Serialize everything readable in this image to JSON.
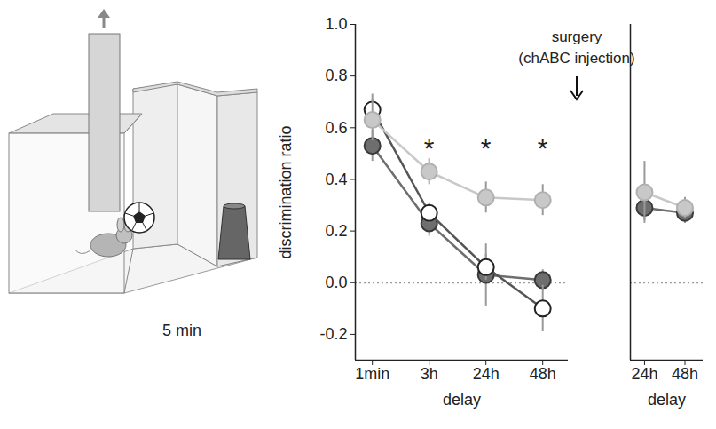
{
  "illustration": {
    "caption": "5 min"
  },
  "annotation": [
    "surgery",
    "(chABC injection)"
  ],
  "chart_data": [
    {
      "type": "line",
      "x_label": "delay",
      "y_label": "discrimination ratio",
      "categories": [
        "1min",
        "3h",
        "24h",
        "48h"
      ],
      "ylim": [
        -0.3,
        1.0
      ],
      "yticks": [
        -0.2,
        {
          "value": 0,
          "label": "0.0"
        },
        0.2,
        0.4,
        0.6,
        0.8,
        {
          "value": 1,
          "label": "1.0"
        }
      ],
      "reference_y": 0,
      "series": [
        {
          "color": "#6e6e6e",
          "marker": "circle",
          "values": [
            0.53,
            0.23,
            0.03,
            0.01
          ],
          "errors": [
            0.06,
            0.05,
            0.12,
            0.04
          ]
        },
        {
          "color": "#ffffff",
          "marker": "circle",
          "values": [
            0.67,
            0.27,
            0.06,
            -0.1
          ],
          "errors": [
            0.06,
            0.04,
            0.05,
            0.09
          ]
        },
        {
          "color": "#c8c8c8",
          "marker": "circle",
          "values": [
            0.63,
            0.43,
            0.33,
            0.32
          ],
          "errors": [
            0.08,
            0.05,
            0.06,
            0.06
          ]
        }
      ],
      "annotations": [
        {
          "text": "*",
          "x": "3h",
          "y": 0.52
        },
        {
          "text": "*",
          "x": "24h",
          "y": 0.52
        },
        {
          "text": "*",
          "x": "48h",
          "y": 0.52
        }
      ]
    },
    {
      "type": "line",
      "x_label": "delay",
      "categories": [
        "24h",
        "48h"
      ],
      "ylim": [
        -0.3,
        1.0
      ],
      "tick_labels": "x",
      "reference_y": 0,
      "series": [
        {
          "color": "#6e6e6e",
          "marker": "circle",
          "values": [
            0.29,
            0.27
          ],
          "errors": [
            0.05,
            0.04
          ]
        },
        {
          "color": "#c8c8c8",
          "marker": "circle",
          "values": [
            0.35,
            0.29
          ],
          "errors": [
            0.12,
            0.04
          ]
        }
      ]
    }
  ]
}
